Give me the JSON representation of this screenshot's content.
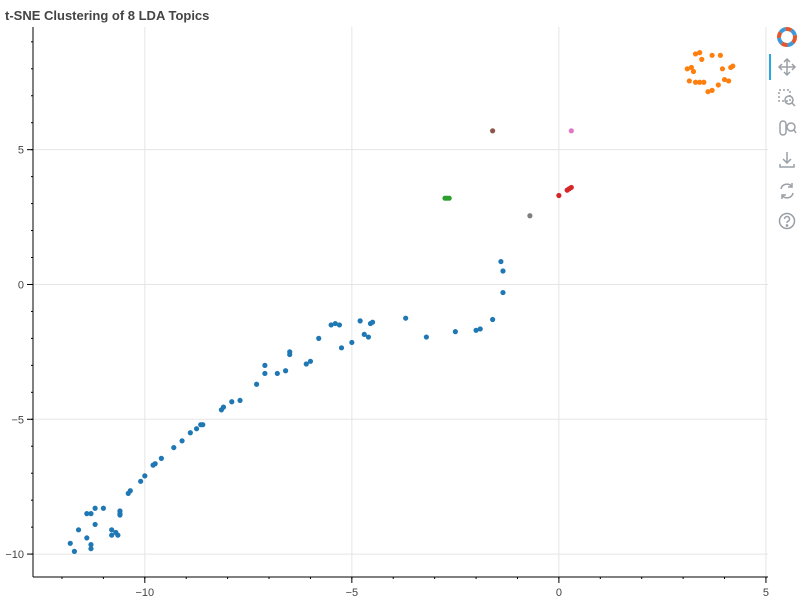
{
  "chart_data": {
    "type": "scatter",
    "title": "t-SNE Clustering of 8 LDA Topics",
    "xlabel": "",
    "ylabel": "",
    "xlim": [
      -12.7,
      5.05
    ],
    "ylim": [
      -10.85,
      9.55
    ],
    "x_ticks": [
      -10,
      -5,
      0,
      5
    ],
    "y_ticks": [
      -10,
      -5,
      0,
      5
    ],
    "x_tick_labels": [
      "−10",
      "−5",
      "0",
      "5"
    ],
    "y_tick_labels": [
      "−10",
      "−5",
      "0",
      "5"
    ],
    "grid": true,
    "legend": "none",
    "series": [
      {
        "color": "#1f77b4",
        "points": [
          [
            -11.8,
            -9.6
          ],
          [
            -11.6,
            -9.1
          ],
          [
            -11.7,
            -9.9
          ],
          [
            -11.4,
            -9.4
          ],
          [
            -11.3,
            -9.8
          ],
          [
            -11.3,
            -9.65
          ],
          [
            -11.3,
            -8.5
          ],
          [
            -11.4,
            -8.5
          ],
          [
            -11.2,
            -8.9
          ],
          [
            -11.2,
            -8.3
          ],
          [
            -11.0,
            -8.3
          ],
          [
            -10.8,
            -9.1
          ],
          [
            -10.8,
            -9.3
          ],
          [
            -10.7,
            -9.2
          ],
          [
            -10.65,
            -9.3
          ],
          [
            -10.6,
            -8.4
          ],
          [
            -10.6,
            -8.55
          ],
          [
            -10.6,
            -8.5
          ],
          [
            -10.4,
            -7.75
          ],
          [
            -10.35,
            -7.65
          ],
          [
            -10.1,
            -7.3
          ],
          [
            -10.0,
            -7.1
          ],
          [
            -9.8,
            -6.7
          ],
          [
            -9.75,
            -6.65
          ],
          [
            -9.6,
            -6.45
          ],
          [
            -9.3,
            -6.05
          ],
          [
            -9.1,
            -5.8
          ],
          [
            -8.9,
            -5.5
          ],
          [
            -8.75,
            -5.35
          ],
          [
            -8.65,
            -5.2
          ],
          [
            -8.6,
            -5.2
          ],
          [
            -8.15,
            -4.65
          ],
          [
            -8.1,
            -4.55
          ],
          [
            -7.9,
            -4.35
          ],
          [
            -7.7,
            -4.3
          ],
          [
            -7.3,
            -3.7
          ],
          [
            -7.1,
            -3.3
          ],
          [
            -7.1,
            -3.0
          ],
          [
            -6.8,
            -3.3
          ],
          [
            -6.6,
            -3.2
          ],
          [
            -6.5,
            -2.6
          ],
          [
            -6.5,
            -2.5
          ],
          [
            -6.1,
            -2.95
          ],
          [
            -6.0,
            -2.85
          ],
          [
            -5.8,
            -2.0
          ],
          [
            -5.5,
            -1.5
          ],
          [
            -5.4,
            -1.45
          ],
          [
            -5.3,
            -1.5
          ],
          [
            -5.25,
            -2.35
          ],
          [
            -5.0,
            -2.15
          ],
          [
            -4.8,
            -1.35
          ],
          [
            -4.7,
            -1.85
          ],
          [
            -4.6,
            -1.95
          ],
          [
            -4.55,
            -1.45
          ],
          [
            -4.5,
            -1.4
          ],
          [
            -3.7,
            -1.25
          ],
          [
            -3.2,
            -1.95
          ],
          [
            -2.5,
            -1.75
          ],
          [
            -2.0,
            -1.7
          ],
          [
            -1.9,
            -1.65
          ],
          [
            -1.6,
            -1.3
          ],
          [
            -1.4,
            0.85
          ],
          [
            -1.35,
            0.5
          ],
          [
            -1.35,
            -0.3
          ]
        ]
      },
      {
        "color": "#ff7f0e",
        "points": [
          [
            3.1,
            8.0
          ],
          [
            3.2,
            8.05
          ],
          [
            3.25,
            7.9
          ],
          [
            3.3,
            8.55
          ],
          [
            3.4,
            8.6
          ],
          [
            3.45,
            8.35
          ],
          [
            3.5,
            7.5
          ],
          [
            3.3,
            7.5
          ],
          [
            3.15,
            7.55
          ],
          [
            3.6,
            7.15
          ],
          [
            3.7,
            7.2
          ],
          [
            3.85,
            7.4
          ],
          [
            4.0,
            7.6
          ],
          [
            4.1,
            7.55
          ],
          [
            4.15,
            8.05
          ],
          [
            4.2,
            8.1
          ],
          [
            3.9,
            8.5
          ],
          [
            3.95,
            8.0
          ],
          [
            3.4,
            7.5
          ],
          [
            3.7,
            8.5
          ]
        ]
      },
      {
        "color": "#2ca02c",
        "points": [
          [
            -2.75,
            3.2
          ],
          [
            -2.7,
            3.2
          ],
          [
            -2.65,
            3.2
          ]
        ]
      },
      {
        "color": "#d62728",
        "points": [
          [
            0.0,
            3.3
          ],
          [
            0.2,
            3.5
          ],
          [
            0.3,
            3.6
          ],
          [
            0.25,
            3.55
          ]
        ]
      },
      {
        "color": "#9467bd",
        "points": []
      },
      {
        "color": "#8c564b",
        "points": [
          [
            -1.6,
            5.7
          ]
        ]
      },
      {
        "color": "#e377c2",
        "points": [
          [
            0.3,
            5.7
          ]
        ]
      },
      {
        "color": "#7f7f7f",
        "points": [
          [
            -0.7,
            2.55
          ]
        ]
      }
    ]
  },
  "toolbar": {
    "tools": [
      {
        "name": "bokeh-logo-icon",
        "interactable": false
      },
      {
        "name": "pan-tool-icon",
        "interactable": true
      },
      {
        "name": "box-zoom-tool-icon",
        "interactable": true
      },
      {
        "name": "wheel-zoom-tool-icon",
        "interactable": true
      },
      {
        "name": "save-tool-icon",
        "interactable": true
      },
      {
        "name": "reset-tool-icon",
        "interactable": true
      },
      {
        "name": "help-tool-icon",
        "interactable": true
      }
    ]
  }
}
